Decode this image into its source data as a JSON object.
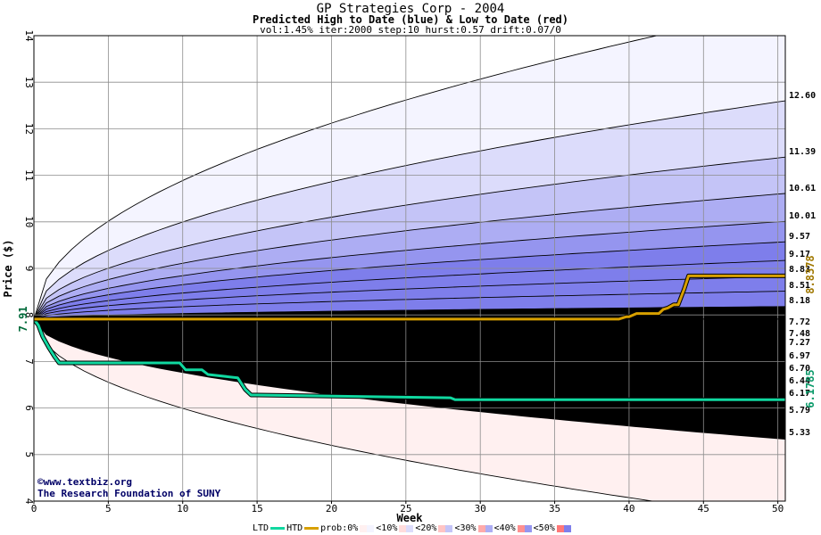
{
  "header": {
    "title": "GP Strategies Corp - 2004",
    "subtitle": "Predicted High to Date (blue) &  Low to Date (red)",
    "params": "vol:1.45% iter:2000 step:10 hurst:0.57 drift:0.07/0"
  },
  "credits": {
    "line1": "©www.textbiz.org",
    "line2": "The Research Foundation of SUNY"
  },
  "legend": {
    "ltd": "LTD",
    "htd": "HTD",
    "prob": "prob:0%",
    "b10": "<10%",
    "b20": "<20%",
    "b30": "<30%",
    "b40": "<40%",
    "b50": "<50%"
  },
  "colors": {
    "ltd": "#10d8a0",
    "htd": "#d8a000",
    "blue_bands": [
      "#f4f4ff",
      "#dcdcfb",
      "#c4c4f7",
      "#adadf3",
      "#9595ef",
      "#7e7eeb"
    ],
    "red_bands": [
      "#fff0f0",
      "#ffdcdc",
      "#ffc4c4",
      "#ffaaaa",
      "#ff9090",
      "#ff7878"
    ]
  },
  "chart_data": {
    "type": "area",
    "xlabel": "Week",
    "ylabel": "Price ($)",
    "xlim": [
      0,
      50.5
    ],
    "ylim": [
      4,
      14
    ],
    "x_ticks": [
      0,
      5,
      10,
      15,
      20,
      25,
      30,
      35,
      40,
      45,
      50
    ],
    "y_ticks": [
      4,
      5,
      6,
      7,
      8,
      9,
      10,
      11,
      12,
      13,
      14
    ],
    "start_price": 7.91,
    "start_label": "7.91",
    "high_quantiles_end": [
      12.6,
      11.39,
      10.61,
      10.01,
      9.57,
      9.17,
      8.83,
      8.51,
      8.18
    ],
    "high_quantile_labels": [
      "12.60",
      "11.39",
      "10.61",
      "10.01",
      "9.57",
      "9.17",
      "8.83",
      "8.51",
      "8.18"
    ],
    "high_extreme_end": 14.6,
    "low_quantiles_end": [
      7.72,
      7.48,
      7.27,
      6.97,
      6.7,
      6.44,
      6.17,
      5.79,
      5.33
    ],
    "low_quantile_labels": [
      "7.72",
      "7.48",
      "7.27",
      "6.97",
      "6.70",
      "6.44",
      "6.17",
      "5.79",
      "5.33"
    ],
    "low_extreme_end": 3.6,
    "htd_series": {
      "name": "HTD",
      "x": [
        0,
        39.3,
        39.8,
        40.0,
        40.5,
        42.0,
        42.3,
        42.6,
        43.0,
        43.3,
        43.7,
        44.0,
        50.5
      ],
      "y": [
        7.91,
        7.91,
        7.96,
        7.96,
        8.03,
        8.03,
        8.12,
        8.15,
        8.22,
        8.22,
        8.55,
        8.84,
        8.84
      ]
    },
    "ltd_series": {
      "name": "LTD",
      "x": [
        0,
        0.3,
        0.6,
        1.0,
        1.4,
        1.7,
        9.8,
        10.2,
        11.3,
        11.7,
        13.7,
        14.2,
        14.6,
        15.0,
        28.0,
        28.3,
        50.5
      ],
      "y": [
        7.91,
        7.78,
        7.53,
        7.3,
        7.1,
        6.97,
        6.97,
        6.82,
        6.82,
        6.72,
        6.65,
        6.4,
        6.28,
        6.28,
        6.22,
        6.18,
        6.18
      ]
    },
    "htd_last_label": "8.8378",
    "ltd_last_label": "6.1785"
  }
}
